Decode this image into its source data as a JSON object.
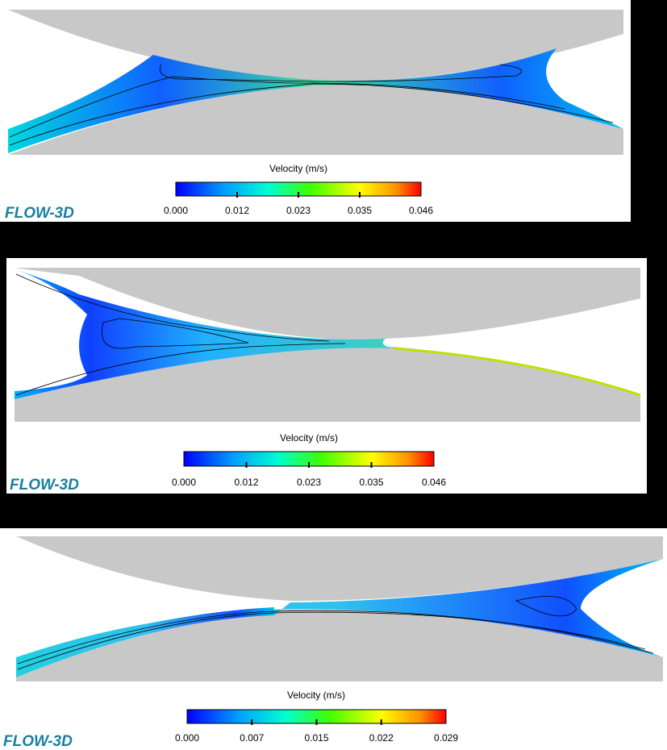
{
  "panels": [
    {
      "colorbar_label": "Velocity (m/s)",
      "ticks": [
        "0.000",
        "0.012",
        "0.023",
        "0.035",
        "0.046"
      ],
      "logo": "FLOW-3D"
    },
    {
      "colorbar_label": "Velocity (m/s)",
      "ticks": [
        "0.000",
        "0.012",
        "0.023",
        "0.035",
        "0.046"
      ],
      "logo": "FLOW-3D"
    },
    {
      "colorbar_label": "Velocity (m/s)",
      "ticks": [
        "0.000",
        "0.007",
        "0.015",
        "0.022",
        "0.029"
      ],
      "logo": "FLOW-3D"
    }
  ]
}
